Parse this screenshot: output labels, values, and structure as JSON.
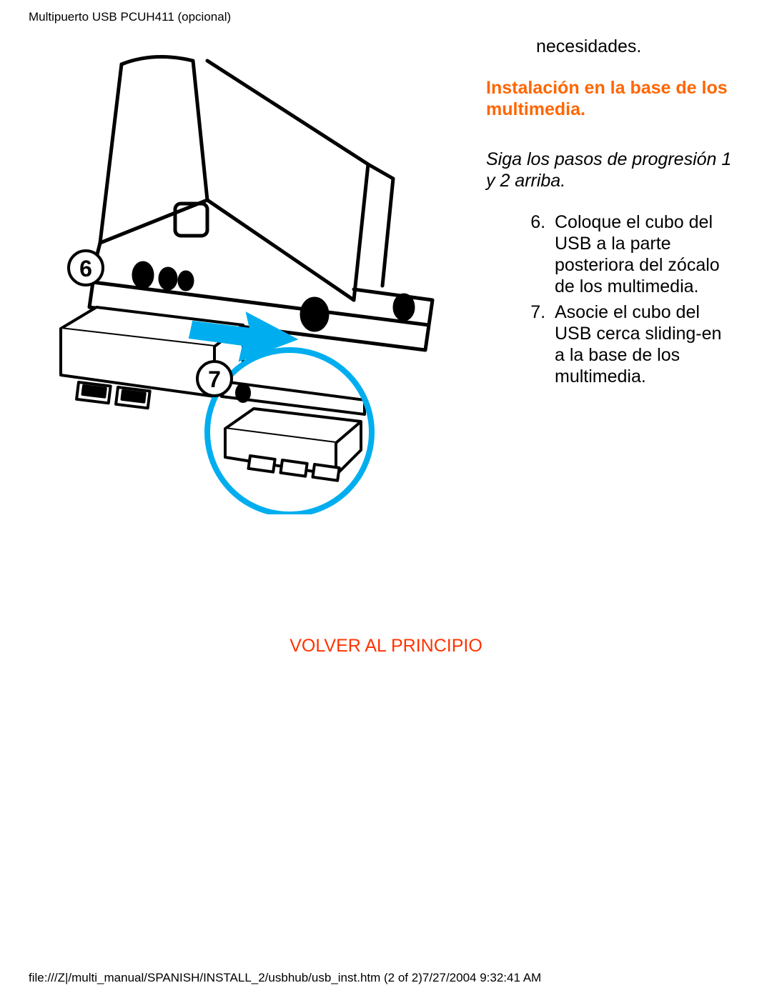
{
  "header": {
    "title": "Multipuerto USB PCUH411 (opcional)"
  },
  "content": {
    "intro_tail": "necesidades.",
    "section_heading": "Instalación en la base de los multimedia.",
    "sub_instructions": "Siga los pasos de progresión 1 y 2 arriba.",
    "steps_start": 6,
    "steps": [
      "Coloque el cubo del USB a la parte posteriora del zócalo de los multimedia.",
      "Asocie el cubo del USB cerca sliding-en a la base de los multimedia."
    ],
    "back_link": "VOLVER AL PRINCIPIO"
  },
  "footer": {
    "path": "file:///Z|/multi_manual/SPANISH/INSTALL_2/usbhub/usb_inst.htm (2 of 2)7/27/2004 9:32:41 AM"
  },
  "colors": {
    "heading": "#ff6600",
    "link": "#ff3300",
    "text": "#000000",
    "background": "#ffffff",
    "arrow": "#00aeef",
    "circle_stroke": "#00aeef"
  },
  "illustration": {
    "callouts": [
      "6",
      "7"
    ]
  }
}
